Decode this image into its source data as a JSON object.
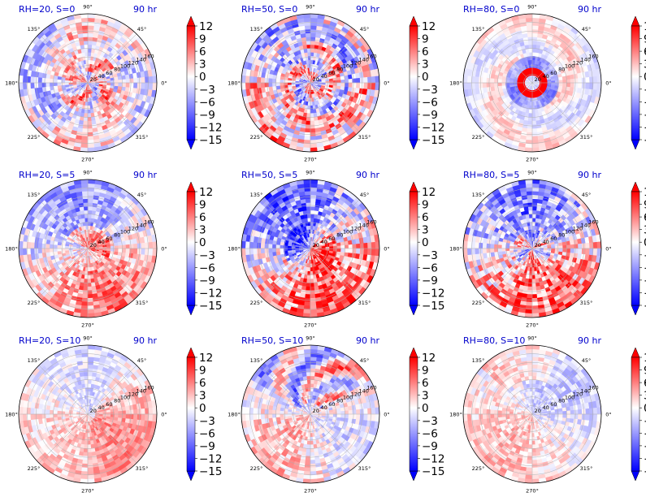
{
  "chart_data": {
    "type": "heatmap",
    "projection": "polar",
    "colormap": "bwr",
    "colors": {
      "low": "#0000ff",
      "mid": "#ffffff",
      "high": "#ff0000"
    },
    "vmin": -15,
    "vmax": 12,
    "colorbar_ticks": [
      "12",
      "9",
      "6",
      "3",
      "0",
      "−3",
      "−6",
      "−9",
      "−12",
      "−15"
    ],
    "colorbar_extend": "both",
    "angular_ticks": [
      "0°",
      "45°",
      "90°",
      "135°",
      "180°",
      "225°",
      "270°",
      "315°"
    ],
    "radial_ticks": [
      "20",
      "40",
      "60",
      "80",
      "100",
      "120",
      "140",
      "160"
    ],
    "rmax": 160,
    "time_label": "90 hr",
    "panels": [
      {
        "title": "RH=20, S=0",
        "pattern": "ring_mixed"
      },
      {
        "title": "RH=50, S=0",
        "pattern": "spiral_mixed"
      },
      {
        "title": "RH=80, S=0",
        "pattern": "strong_eyewall"
      },
      {
        "title": "RH=20, S=5",
        "pattern": "dipole_blue_north"
      },
      {
        "title": "RH=50, S=5",
        "pattern": "dipole_strong"
      },
      {
        "title": "RH=80, S=5",
        "pattern": "dipole_ring"
      },
      {
        "title": "RH=20, S=10",
        "pattern": "weak_red_east"
      },
      {
        "title": "RH=50, S=10",
        "pattern": "north_band"
      },
      {
        "title": "RH=80, S=10",
        "pattern": "weak_broad"
      }
    ]
  }
}
